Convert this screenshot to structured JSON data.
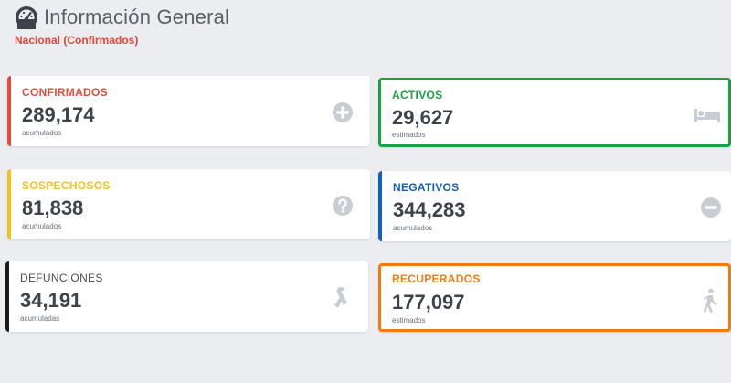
{
  "header": {
    "title": "Información General",
    "subtitle": "Nacional (Confirmados)",
    "icon": "speedometer-icon"
  },
  "cards": {
    "confirmados": {
      "label": "CONFIRMADOS",
      "value": "289,174",
      "note": "acumulados",
      "color": "#e04b3a",
      "icon": "plus-circle-icon"
    },
    "activos": {
      "label": "ACTIVOS",
      "value": "29,627",
      "note": "estimados",
      "color": "#18a33f",
      "icon": "bed-icon"
    },
    "sospechosos": {
      "label": "SOSPECHOSOS",
      "value": "81,838",
      "note": "acumulados",
      "color": "#f2c21b",
      "icon": "question-circle-icon"
    },
    "negativos": {
      "label": "NEGATIVOS",
      "value": "344,283",
      "note": "acumulados",
      "color": "#1262b3",
      "icon": "minus-circle-icon"
    },
    "defunciones": {
      "label": "DEFUNCIONES",
      "value": "34,191",
      "note": "acumuladas",
      "color": "#1a1a1a",
      "icon": "ribbon-icon"
    },
    "recuperados": {
      "label": "RECUPERADOS",
      "value": "177,097",
      "note": "estimados",
      "color": "#ee7d11",
      "icon": "walking-person-icon"
    }
  }
}
